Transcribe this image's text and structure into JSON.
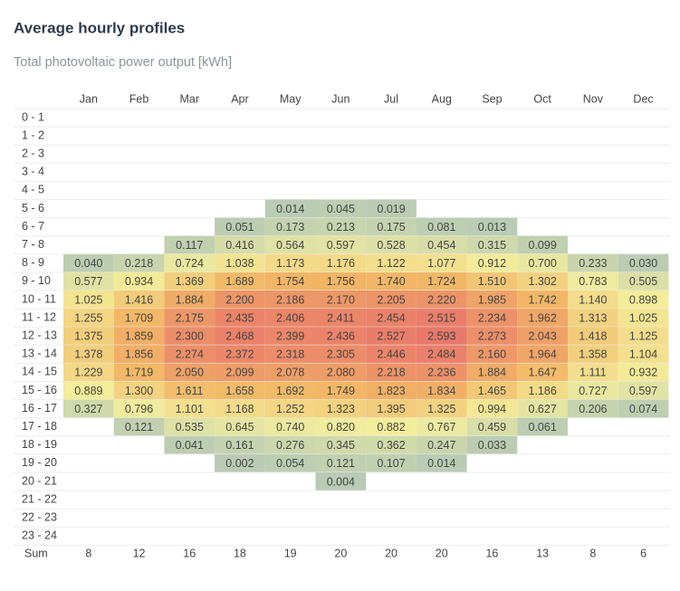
{
  "chart_data": {
    "type": "heatmap",
    "title": "Average hourly profiles",
    "subtitle": "Total photovoltaic power output [kWh]",
    "categories": [
      "Jan",
      "Feb",
      "Mar",
      "Apr",
      "May",
      "Jun",
      "Jul",
      "Aug",
      "Sep",
      "Oct",
      "Nov",
      "Dec"
    ],
    "rows": [
      "0 - 1",
      "1 - 2",
      "2 - 3",
      "3 - 4",
      "4 - 5",
      "5 - 6",
      "6 - 7",
      "7 - 8",
      "8 - 9",
      "9 - 10",
      "10 - 11",
      "11 - 12",
      "12 - 13",
      "13 - 14",
      "14 - 15",
      "15 - 16",
      "16 - 17",
      "17 - 18",
      "18 - 19",
      "19 - 20",
      "20 - 21",
      "21 - 22",
      "22 - 23",
      "23 - 24"
    ],
    "values": [
      [
        null,
        null,
        null,
        null,
        null,
        null,
        null,
        null,
        null,
        null,
        null,
        null
      ],
      [
        null,
        null,
        null,
        null,
        null,
        null,
        null,
        null,
        null,
        null,
        null,
        null
      ],
      [
        null,
        null,
        null,
        null,
        null,
        null,
        null,
        null,
        null,
        null,
        null,
        null
      ],
      [
        null,
        null,
        null,
        null,
        null,
        null,
        null,
        null,
        null,
        null,
        null,
        null
      ],
      [
        null,
        null,
        null,
        null,
        null,
        null,
        null,
        null,
        null,
        null,
        null,
        null
      ],
      [
        null,
        null,
        null,
        null,
        0.014,
        0.045,
        0.019,
        null,
        null,
        null,
        null,
        null
      ],
      [
        null,
        null,
        null,
        0.051,
        0.173,
        0.213,
        0.175,
        0.081,
        0.013,
        null,
        null,
        null
      ],
      [
        null,
        null,
        0.117,
        0.416,
        0.564,
        0.597,
        0.528,
        0.454,
        0.315,
        0.099,
        null,
        null
      ],
      [
        0.04,
        0.218,
        0.724,
        1.038,
        1.173,
        1.176,
        1.122,
        1.077,
        0.912,
        0.7,
        0.233,
        0.03
      ],
      [
        0.577,
        0.934,
        1.369,
        1.689,
        1.754,
        1.756,
        1.74,
        1.724,
        1.51,
        1.302,
        0.783,
        0.505
      ],
      [
        1.025,
        1.416,
        1.884,
        2.2,
        2.186,
        2.17,
        2.205,
        2.22,
        1.985,
        1.742,
        1.14,
        0.898
      ],
      [
        1.255,
        1.709,
        2.175,
        2.435,
        2.406,
        2.411,
        2.454,
        2.515,
        2.234,
        1.962,
        1.313,
        1.025
      ],
      [
        1.375,
        1.859,
        2.3,
        2.468,
        2.399,
        2.436,
        2.527,
        2.593,
        2.273,
        2.043,
        1.418,
        1.125
      ],
      [
        1.378,
        1.856,
        2.274,
        2.372,
        2.318,
        2.305,
        2.446,
        2.484,
        2.16,
        1.964,
        1.358,
        1.104
      ],
      [
        1.229,
        1.719,
        2.05,
        2.099,
        2.078,
        2.08,
        2.218,
        2.236,
        1.884,
        1.647,
        1.111,
        0.932
      ],
      [
        0.889,
        1.3,
        1.611,
        1.658,
        1.692,
        1.749,
        1.823,
        1.834,
        1.465,
        1.186,
        0.727,
        0.597
      ],
      [
        0.327,
        0.796,
        1.101,
        1.168,
        1.252,
        1.323,
        1.395,
        1.325,
        0.994,
        0.627,
        0.206,
        0.074
      ],
      [
        null,
        0.121,
        0.535,
        0.645,
        0.74,
        0.82,
        0.882,
        0.767,
        0.459,
        0.061,
        null,
        null
      ],
      [
        null,
        null,
        0.041,
        0.161,
        0.276,
        0.345,
        0.362,
        0.247,
        0.033,
        null,
        null,
        null
      ],
      [
        null,
        null,
        null,
        0.002,
        0.054,
        0.121,
        0.107,
        0.014,
        null,
        null,
        null,
        null
      ],
      [
        null,
        null,
        null,
        null,
        null,
        0.004,
        null,
        null,
        null,
        null,
        null,
        null
      ],
      [
        null,
        null,
        null,
        null,
        null,
        null,
        null,
        null,
        null,
        null,
        null,
        null
      ],
      [
        null,
        null,
        null,
        null,
        null,
        null,
        null,
        null,
        null,
        null,
        null,
        null
      ],
      [
        null,
        null,
        null,
        null,
        null,
        null,
        null,
        null,
        null,
        null,
        null,
        null
      ]
    ],
    "value_labels": [
      [
        null,
        null,
        null,
        null,
        null,
        null,
        null,
        null,
        null,
        null,
        null,
        null
      ],
      [
        null,
        null,
        null,
        null,
        null,
        null,
        null,
        null,
        null,
        null,
        null,
        null
      ],
      [
        null,
        null,
        null,
        null,
        null,
        null,
        null,
        null,
        null,
        null,
        null,
        null
      ],
      [
        null,
        null,
        null,
        null,
        null,
        null,
        null,
        null,
        null,
        null,
        null,
        null
      ],
      [
        null,
        null,
        null,
        null,
        null,
        null,
        null,
        null,
        null,
        null,
        null,
        null
      ],
      [
        null,
        null,
        null,
        null,
        "0.014",
        "0.045",
        "0.019",
        null,
        null,
        null,
        null,
        null
      ],
      [
        null,
        null,
        null,
        "0.051",
        "0.173",
        "0.213",
        "0.175",
        "0.081",
        "0.013",
        null,
        null,
        null
      ],
      [
        null,
        null,
        "0.117",
        "0.416",
        "0.564",
        "0.597",
        "0.528",
        "0.454",
        "0.315",
        "0.099",
        null,
        null
      ],
      [
        "0.040",
        "0.218",
        "0.724",
        "1.038",
        "1.173",
        "1.176",
        "1.122",
        "1.077",
        "0.912",
        "0.700",
        "0.233",
        "0.030"
      ],
      [
        "0.577",
        "0.934",
        "1.369",
        "1.689",
        "1.754",
        "1.756",
        "1.740",
        "1.724",
        "1.510",
        "1.302",
        "0.783",
        "0.505"
      ],
      [
        "1.025",
        "1.416",
        "1.884",
        "2.200",
        "2.186",
        "2.170",
        "2.205",
        "2.220",
        "1.985",
        "1.742",
        "1.140",
        "0.898"
      ],
      [
        "1.255",
        "1.709",
        "2.175",
        "2.435",
        "2.406",
        "2.411",
        "2.454",
        "2.515",
        "2.234",
        "1.962",
        "1.313",
        "1.025"
      ],
      [
        "1.375",
        "1.859",
        "2.300",
        "2.468",
        "2.399",
        "2.436",
        "2.527",
        "2.593",
        "2.273",
        "2.043",
        "1.418",
        "1.125"
      ],
      [
        "1.378",
        "1.856",
        "2.274",
        "2.372",
        "2.318",
        "2.305",
        "2.446",
        "2.484",
        "2.160",
        "1.964",
        "1.358",
        "1.104"
      ],
      [
        "1.229",
        "1.719",
        "2.050",
        "2.099",
        "2.078",
        "2.080",
        "2.218",
        "2.236",
        "1.884",
        "1.647",
        "1.111",
        "0.932"
      ],
      [
        "0.889",
        "1.300",
        "1.611",
        "1.658",
        "1.692",
        "1.749",
        "1.823",
        "1.834",
        "1.465",
        "1.186",
        "0.727",
        "0.597"
      ],
      [
        "0.327",
        "0.796",
        "1.101",
        "1.168",
        "1.252",
        "1.323",
        "1.395",
        "1.325",
        "0.994",
        "0.627",
        "0.206",
        "0.074"
      ],
      [
        null,
        "0.121",
        "0.535",
        "0.645",
        "0.740",
        "0.820",
        "0.882",
        "0.767",
        "0.459",
        "0.061",
        null,
        null
      ],
      [
        null,
        null,
        "0.041",
        "0.161",
        "0.276",
        "0.345",
        "0.362",
        "0.247",
        "0.033",
        null,
        null,
        null
      ],
      [
        null,
        null,
        null,
        "0.002",
        "0.054",
        "0.121",
        "0.107",
        "0.014",
        null,
        null,
        null,
        null
      ],
      [
        null,
        null,
        null,
        null,
        null,
        "0.004",
        null,
        null,
        null,
        null,
        null,
        null
      ],
      [
        null,
        null,
        null,
        null,
        null,
        null,
        null,
        null,
        null,
        null,
        null,
        null
      ],
      [
        null,
        null,
        null,
        null,
        null,
        null,
        null,
        null,
        null,
        null,
        null,
        null
      ],
      [
        null,
        null,
        null,
        null,
        null,
        null,
        null,
        null,
        null,
        null,
        null,
        null
      ]
    ],
    "sum_label": "Sum",
    "sums": [
      8,
      12,
      16,
      18,
      19,
      20,
      20,
      20,
      16,
      13,
      8,
      6
    ],
    "color_scale": [
      "#b9cbb3",
      "#f3ee9c",
      "#f2b766",
      "#e9786a"
    ]
  }
}
